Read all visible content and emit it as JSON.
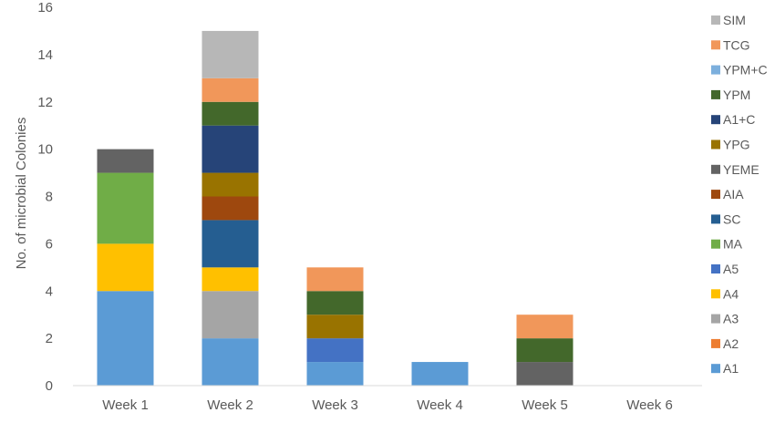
{
  "chart_data": {
    "type": "bar",
    "stacked": true,
    "categories": [
      "Week 1",
      "Week 2",
      "Week 3",
      "Week 4",
      "Week 5",
      "Week 6"
    ],
    "title": "",
    "xlabel": "",
    "ylabel": "No. of microbial Colonies",
    "ylim": [
      0,
      16
    ],
    "yticks": [
      0,
      2,
      4,
      6,
      8,
      10,
      12,
      14,
      16
    ],
    "grid": false,
    "legend_position": "right",
    "series": [
      {
        "name": "A1",
        "color": "#5b9bd5",
        "values": [
          4,
          2,
          1,
          1,
          0,
          0
        ]
      },
      {
        "name": "A2",
        "color": "#ed7d31",
        "values": [
          0,
          0,
          0,
          0,
          0,
          0
        ]
      },
      {
        "name": "A3",
        "color": "#a5a5a5",
        "values": [
          0,
          2,
          0,
          0,
          0,
          0
        ]
      },
      {
        "name": "A4",
        "color": "#ffc000",
        "values": [
          2,
          1,
          0,
          0,
          0,
          0
        ]
      },
      {
        "name": "A5",
        "color": "#4472c4",
        "values": [
          0,
          0,
          1,
          0,
          0,
          0
        ]
      },
      {
        "name": "MA",
        "color": "#70ad47",
        "values": [
          3,
          0,
          0,
          0,
          0,
          0
        ]
      },
      {
        "name": "SC",
        "color": "#255e91",
        "values": [
          0,
          2,
          0,
          0,
          0,
          0
        ]
      },
      {
        "name": "AIA",
        "color": "#9e480e",
        "values": [
          0,
          1,
          0,
          0,
          0,
          0
        ]
      },
      {
        "name": "YEME",
        "color": "#636363",
        "values": [
          1,
          0,
          0,
          0,
          1,
          0
        ]
      },
      {
        "name": "YPG",
        "color": "#997300",
        "values": [
          0,
          1,
          1,
          0,
          0,
          0
        ]
      },
      {
        "name": "A1+C",
        "color": "#264478",
        "values": [
          0,
          2,
          0,
          0,
          0,
          0
        ]
      },
      {
        "name": "YPM",
        "color": "#43682b",
        "values": [
          0,
          1,
          1,
          0,
          1,
          0
        ]
      },
      {
        "name": "YPM+C",
        "color": "#7cafdd",
        "values": [
          0,
          0,
          0,
          0,
          0,
          0
        ]
      },
      {
        "name": "TCG",
        "color": "#f1975a",
        "values": [
          0,
          1,
          1,
          0,
          1,
          0
        ]
      },
      {
        "name": "SIM",
        "color": "#b7b7b7",
        "values": [
          0,
          2,
          0,
          0,
          0,
          0
        ]
      }
    ]
  }
}
